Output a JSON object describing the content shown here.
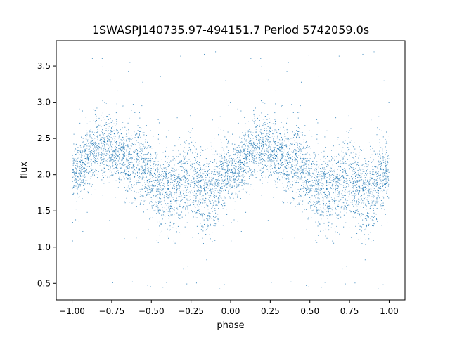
{
  "chart_data": {
    "type": "scatter",
    "title": "1SWASPJ140735.97-494151.7 Period 5742059.0s",
    "xlabel": "phase",
    "ylabel": "flux",
    "xlim": [
      -1.1,
      1.1
    ],
    "ylim": [
      0.27,
      3.85
    ],
    "x_ticks": [
      -1.0,
      -0.75,
      -0.5,
      -0.25,
      0.0,
      0.25,
      0.5,
      0.75,
      1.0
    ],
    "x_tick_labels": [
      "−1.00",
      "−0.75",
      "−0.50",
      "−0.25",
      "0.00",
      "0.25",
      "0.50",
      "0.75",
      "1.00"
    ],
    "y_ticks": [
      0.5,
      1.0,
      1.5,
      2.0,
      2.5,
      3.0,
      3.5
    ],
    "y_tick_labels": [
      "0.5",
      "1.0",
      "1.5",
      "2.0",
      "2.5",
      "3.0",
      "3.5"
    ],
    "grid": false,
    "legend": "none",
    "marker_color": "#1f77b4",
    "phase_range": [
      -1.0,
      1.0
    ],
    "flux_profile": {
      "phase": [
        0.0,
        0.05,
        0.1,
        0.15,
        0.2,
        0.25,
        0.3,
        0.35,
        0.4,
        0.45,
        0.5,
        0.55,
        0.6,
        0.65,
        0.7,
        0.75,
        0.8,
        0.85,
        0.9,
        0.95,
        1.0
      ],
      "median_flux": [
        2.05,
        2.1,
        2.25,
        2.35,
        2.4,
        2.35,
        2.3,
        2.2,
        2.15,
        2.1,
        1.95,
        1.85,
        1.8,
        1.85,
        1.9,
        1.95,
        1.85,
        1.75,
        1.85,
        2.0,
        2.05
      ],
      "spread": [
        0.25,
        0.25,
        0.25,
        0.25,
        0.25,
        0.25,
        0.25,
        0.28,
        0.3,
        0.3,
        0.3,
        0.3,
        0.3,
        0.3,
        0.3,
        0.32,
        0.32,
        0.35,
        0.32,
        0.28,
        0.25
      ]
    },
    "flux_extremes": [
      0.42,
      3.7
    ],
    "density": "dense, several thousand points"
  }
}
